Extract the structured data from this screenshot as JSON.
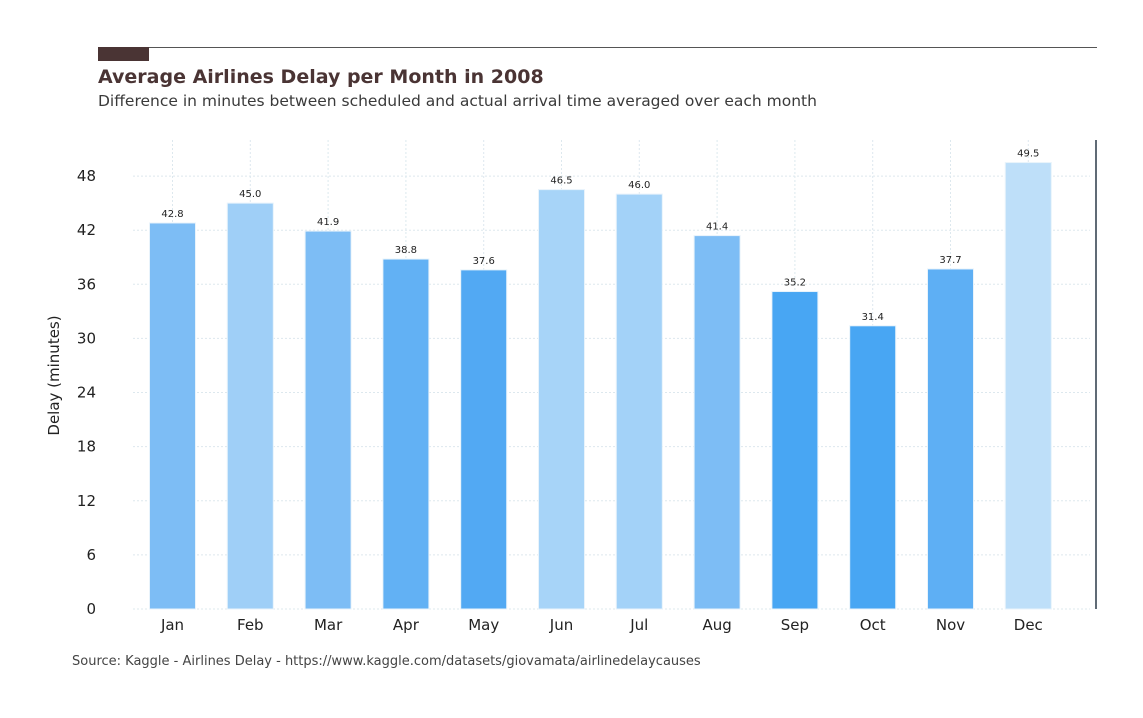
{
  "header": {
    "title": "Average Airlines Delay per Month in 2008",
    "subtitle": "Difference in minutes between scheduled and actual arrival time averaged over each month"
  },
  "footer": {
    "source": "Source: Kaggle - Airlines Delay - https://www.kaggle.com/datasets/giovamata/airlinedelaycauses"
  },
  "colors": {
    "title": "#4a3434",
    "accent": "#4a3434",
    "rule": "#555555",
    "grid": "#dde8ee",
    "right_spine": "#2b3a48"
  },
  "chart_data": {
    "type": "bar",
    "title": "Average Airlines Delay per Month in 2008",
    "xlabel": "",
    "ylabel": "Delay (minutes)",
    "categories": [
      "Jan",
      "Feb",
      "Mar",
      "Apr",
      "May",
      "Jun",
      "Jul",
      "Aug",
      "Sep",
      "Oct",
      "Nov",
      "Dec"
    ],
    "values": [
      42.8,
      45.0,
      41.9,
      38.8,
      37.6,
      46.5,
      46.0,
      41.4,
      35.2,
      31.4,
      37.7,
      49.5
    ],
    "data_labels": [
      "42.8",
      "45.0",
      "41.9",
      "38.8",
      "37.6",
      "46.5",
      "46.0",
      "41.4",
      "35.2",
      "31.4",
      "37.7",
      "49.5"
    ],
    "bar_colors": [
      "#7dbdf5",
      "#9fcff7",
      "#7dbdf5",
      "#62b1f4",
      "#52a9f3",
      "#a7d4f8",
      "#a3d2f8",
      "#7dbdf5",
      "#48a6f3",
      "#48a6f3",
      "#5eaff4",
      "#bedff9"
    ],
    "yticks": [
      0,
      6,
      12,
      18,
      24,
      30,
      36,
      42,
      48
    ],
    "ylim": [
      0,
      52
    ],
    "grid": true,
    "legend": "none"
  }
}
